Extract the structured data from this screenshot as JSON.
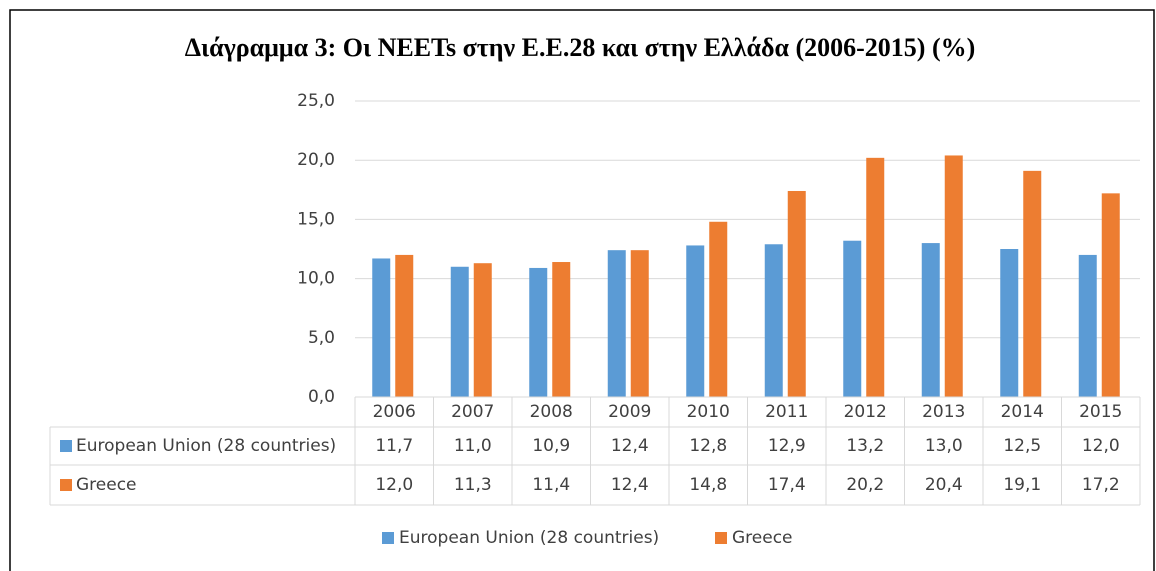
{
  "chart_data": {
    "type": "bar",
    "title": "Διάγραμμα 3: Οι NEETs στην Ε.Ε.28 και στην Ελλάδα (2006-2015) (%)",
    "categories": [
      "2006",
      "2007",
      "2008",
      "2009",
      "2010",
      "2011",
      "2012",
      "2013",
      "2014",
      "2015"
    ],
    "series": [
      {
        "name": "European Union (28 countries)",
        "color": "#5b9bd5",
        "values": [
          11.7,
          11.0,
          10.9,
          12.4,
          12.8,
          12.9,
          13.2,
          13.0,
          12.5,
          12.0
        ],
        "value_labels": [
          "11,7",
          "11,0",
          "10,9",
          "12,4",
          "12,8",
          "12,9",
          "13,2",
          "13,0",
          "12,5",
          "12,0"
        ]
      },
      {
        "name": "Greece",
        "color": "#ed7d31",
        "values": [
          12.0,
          11.3,
          11.4,
          12.4,
          14.8,
          17.4,
          20.2,
          20.4,
          19.1,
          17.2
        ],
        "value_labels": [
          "12,0",
          "11,3",
          "11,4",
          "12,4",
          "14,8",
          "17,4",
          "20,2",
          "20,4",
          "19,1",
          "17,2"
        ]
      }
    ],
    "ylim": [
      0,
      25
    ],
    "yticks": [
      {
        "value": 0,
        "label": "0,0"
      },
      {
        "value": 5,
        "label": "5,0"
      },
      {
        "value": 10,
        "label": "10,0"
      },
      {
        "value": 15,
        "label": "15,0"
      },
      {
        "value": 20,
        "label": "20,0"
      },
      {
        "value": 25,
        "label": "25,0"
      }
    ],
    "grid": true,
    "legend": "bottom"
  }
}
